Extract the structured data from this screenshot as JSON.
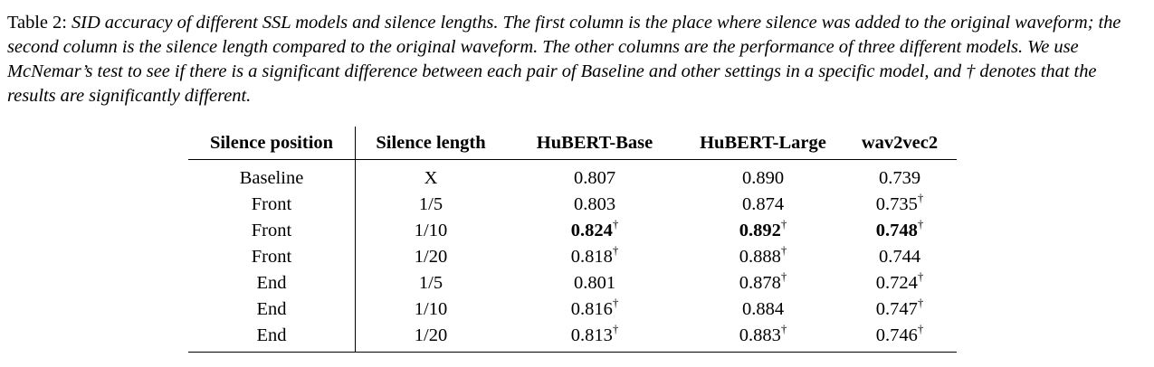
{
  "caption": {
    "label": "Table 2:",
    "text": "SID accuracy of different SSL models and silence lengths. The first column is the place where silence was added to the original waveform; the second column is the silence length compared to the original waveform. The other columns are the performance of three different models. We use McNemar’s test to see if there is a significant difference between each pair of Baseline and other settings in a specific model, and † denotes that the results are significantly different."
  },
  "table": {
    "columns": [
      "Silence position",
      "Silence length",
      "HuBERT-Base",
      "HuBERT-Large",
      "wav2vec2"
    ],
    "significance_marker": "†",
    "rows": [
      {
        "position": "Baseline",
        "length": "X",
        "hubert_base": {
          "value": "0.807",
          "sig": false,
          "best": false
        },
        "hubert_large": {
          "value": "0.890",
          "sig": false,
          "best": false
        },
        "wav2vec2": {
          "value": "0.739",
          "sig": false,
          "best": false
        }
      },
      {
        "position": "Front",
        "length": "1/5",
        "hubert_base": {
          "value": "0.803",
          "sig": false,
          "best": false
        },
        "hubert_large": {
          "value": "0.874",
          "sig": false,
          "best": false
        },
        "wav2vec2": {
          "value": "0.735",
          "sig": true,
          "best": false
        }
      },
      {
        "position": "Front",
        "length": "1/10",
        "hubert_base": {
          "value": "0.824",
          "sig": true,
          "best": true
        },
        "hubert_large": {
          "value": "0.892",
          "sig": true,
          "best": true
        },
        "wav2vec2": {
          "value": "0.748",
          "sig": true,
          "best": true
        }
      },
      {
        "position": "Front",
        "length": "1/20",
        "hubert_base": {
          "value": "0.818",
          "sig": true,
          "best": false
        },
        "hubert_large": {
          "value": "0.888",
          "sig": true,
          "best": false
        },
        "wav2vec2": {
          "value": "0.744",
          "sig": false,
          "best": false
        }
      },
      {
        "position": "End",
        "length": "1/5",
        "hubert_base": {
          "value": "0.801",
          "sig": false,
          "best": false
        },
        "hubert_large": {
          "value": "0.878",
          "sig": true,
          "best": false
        },
        "wav2vec2": {
          "value": "0.724",
          "sig": true,
          "best": false
        }
      },
      {
        "position": "End",
        "length": "1/10",
        "hubert_base": {
          "value": "0.816",
          "sig": true,
          "best": false
        },
        "hubert_large": {
          "value": "0.884",
          "sig": false,
          "best": false
        },
        "wav2vec2": {
          "value": "0.747",
          "sig": true,
          "best": false
        }
      },
      {
        "position": "End",
        "length": "1/20",
        "hubert_base": {
          "value": "0.813",
          "sig": true,
          "best": false
        },
        "hubert_large": {
          "value": "0.883",
          "sig": true,
          "best": false
        },
        "wav2vec2": {
          "value": "0.746",
          "sig": true,
          "best": false
        }
      }
    ]
  }
}
